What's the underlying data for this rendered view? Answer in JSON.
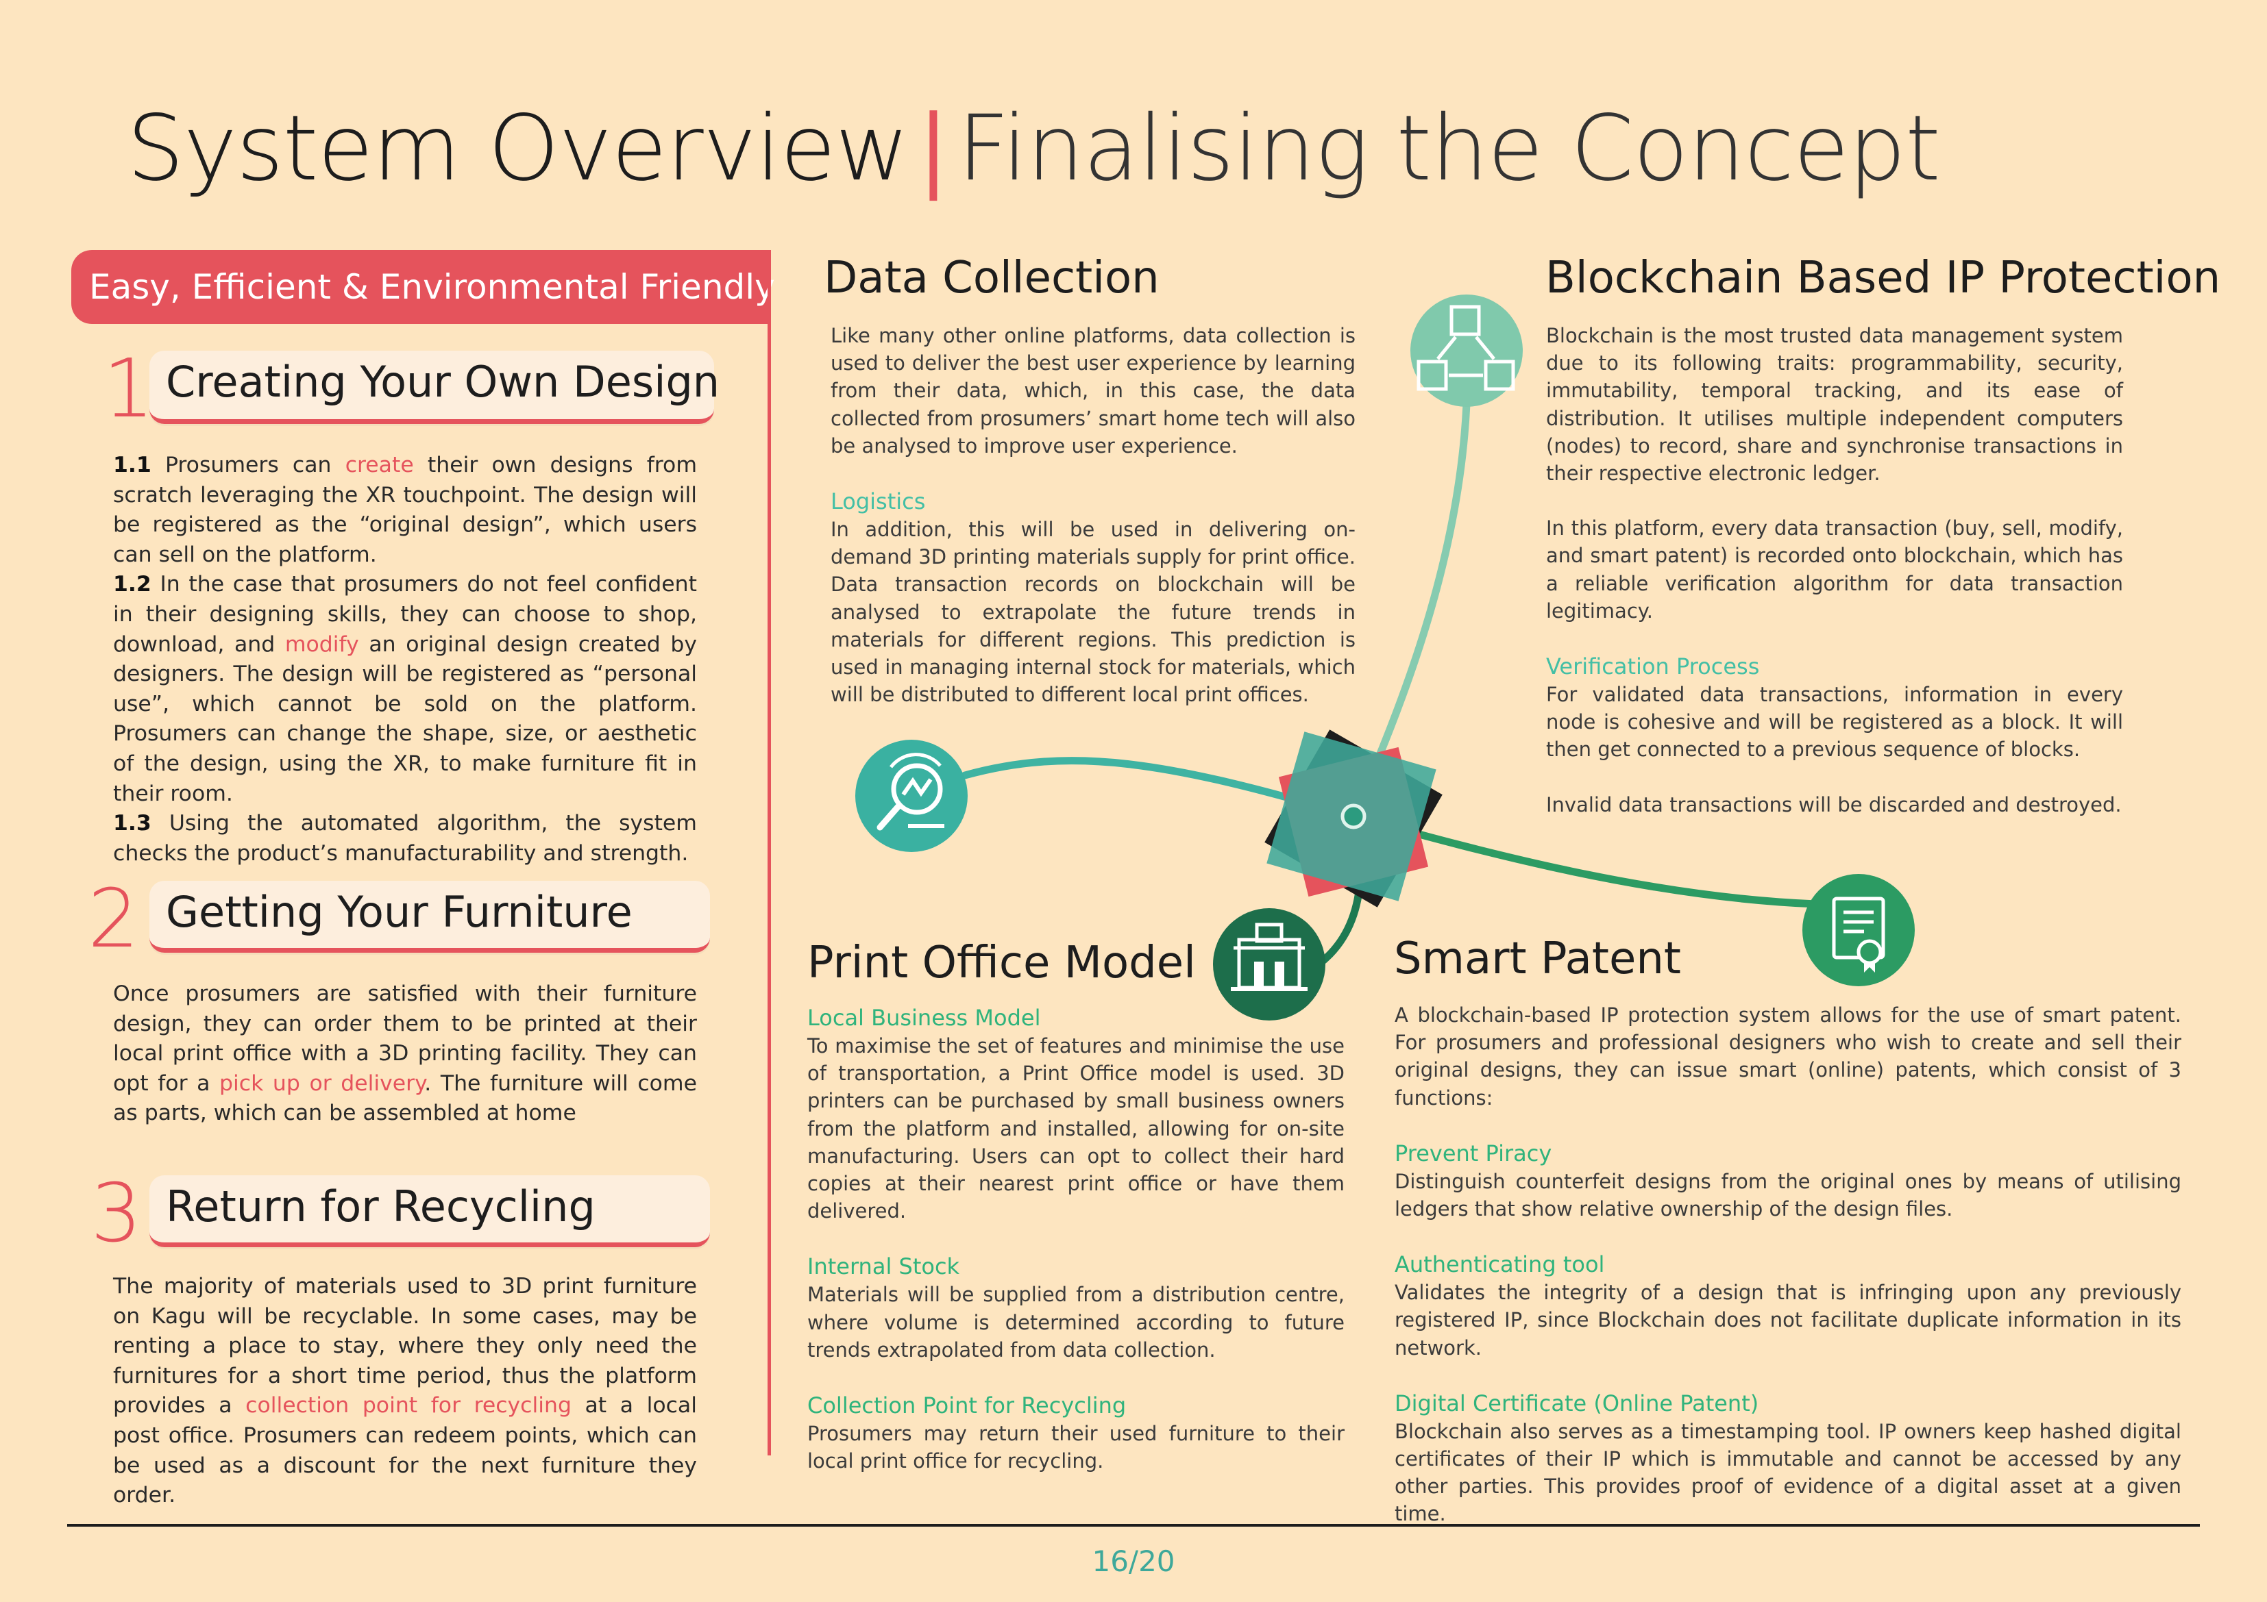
{
  "header": {
    "title": "System Overview",
    "separator": "|",
    "subtitle": "Finalising the Concept"
  },
  "left": {
    "tagline": "Easy, Efficient & Environmental Friendly",
    "sections": [
      {
        "number": "1",
        "heading": "Creating Your Own Design",
        "p1_num": "1.1",
        "p1_a": " Prosumers can ",
        "p1_hl": "create",
        "p1_b": " their own designs from scratch leveraging the XR touchpoint. The design will be registered as the “original design”, which users can sell on the platform.",
        "p2_num": "1.2",
        "p2_a": " In the case that prosumers do not feel confident in their designing skills, they can choose to shop, download, and ",
        "p2_hl": "modify",
        "p2_b": " an original design created by designers. The design will be registered as “personal use”, which cannot be sold on the platform. Prosumers can change the shape, size, or aesthetic of the design, using the XR, to make furniture fit in their room.",
        "p3_num": "1.3",
        "p3_a": " Using the automated algorithm, the system checks the product’s manufacturability and strength."
      },
      {
        "number": "2",
        "heading": "Getting Your Furniture",
        "text_a": "Once prosumers are satisfied with their furniture design, they can order them to be printed at their local print office with a 3D printing facility. They can opt for a ",
        "text_hl": "pick up or delivery",
        "text_b": ". The furniture will come as parts, which can be assembled at home"
      },
      {
        "number": "3",
        "heading": "Return for Recycling",
        "text_a": "The majority of materials used to 3D print furniture on Kagu will be recyclable. In some cases,  may be renting a place to stay, where they only need the furnitures for a short time period, thus the platform provides a ",
        "text_hl": "collection point for recycling",
        "text_b": " at a local post office. Prosumers can redeem points, which can be used as a discount for the next furniture they order."
      }
    ]
  },
  "data_collection": {
    "heading": "Data Collection",
    "body": "Like many other online platforms, data collection is used to deliver the best user experience by learning from their data, which, in this case, the data collected from prosumers’ smart home tech will also be analysed to improve user experience.",
    "sub_heading": "Logistics",
    "sub_body": "In addition, this will be used in delivering on-demand 3D printing materials supply for print office. Data transaction records on blockchain will be  analysed to extrapolate the future trends in materials for different regions. This prediction is used in managing internal stock for materials, which will be distributed to different local print offices."
  },
  "blockchain": {
    "heading": "Blockchain Based IP Protection",
    "body1": "Blockchain is the most trusted data management system due to its following traits: programmability, security, immutability, temporal tracking, and its ease of distribution. It utilises multiple independent computers (nodes) to record, share and synchronise transactions in their respective electronic ledger.",
    "body2": "In this platform, every data transaction (buy, sell, modify, and smart patent) is recorded onto blockchain, which has a reliable verification algorithm for data transaction legitimacy.",
    "sub_heading": "Verification Process",
    "sub_body1": "For validated data transactions, information in every node is cohesive and will be registered as a block. It will then get connected to a previous sequence of blocks.",
    "sub_body2": "Invalid data transactions will be discarded and destroyed."
  },
  "print_office": {
    "heading": "Print Office Model",
    "items": [
      {
        "heading": "Local Business Model",
        "body": "To maximise the set of features and minimise the use of transportation, a Print Office model is used. 3D printers can be purchased by small business owners from the platform and installed, allowing for on-site manufacturing. Users can opt to collect their hard copies at their nearest print office or have them delivered."
      },
      {
        "heading": "Internal Stock",
        "body": "Materials will be supplied from a distribution centre, where volume is determined according to future trends extrapolated from data collection."
      },
      {
        "heading": "Collection Point for Recycling",
        "body": "Prosumers may return their used furniture to their local print office for recycling."
      }
    ]
  },
  "smart_patent": {
    "heading": "Smart Patent",
    "body": "A blockchain-based IP protection system allows for the use of  smart patent. For prosumers and professional designers who wish to create and sell their original designs, they can issue smart (online) patents, which consist of 3 functions:",
    "items": [
      {
        "heading": "Prevent Piracy",
        "body": "Distinguish counterfeit designs from the original ones by means of utilising ledgers that show relative ownership of the design files."
      },
      {
        "heading": "Authenticating tool",
        "body": "Validates the integrity of a design that is infringing upon any previously registered IP, since Blockchain does not facilitate duplicate information in its network."
      },
      {
        "heading": "Digital Certificate (Online Patent)",
        "body": "Blockchain also serves as a timestamping tool. IP owners keep hashed digital certificates of their IP which is immutable and cannot be accessed by any other parties. This provides proof of evidence of a digital asset at a given time."
      }
    ]
  },
  "icons": {
    "data_collection": "data-analysis-icon",
    "blockchain": "blockchain-network-icon",
    "print_office": "print-office-building-icon",
    "smart_patent": "certificate-icon"
  },
  "colors": {
    "background": "#fde5c0",
    "accent_red": "#e5535c",
    "teal": "#43bfa5",
    "green": "#2fb37c",
    "dark_green": "#1d6e4b"
  },
  "footer": {
    "page": "16/20"
  }
}
